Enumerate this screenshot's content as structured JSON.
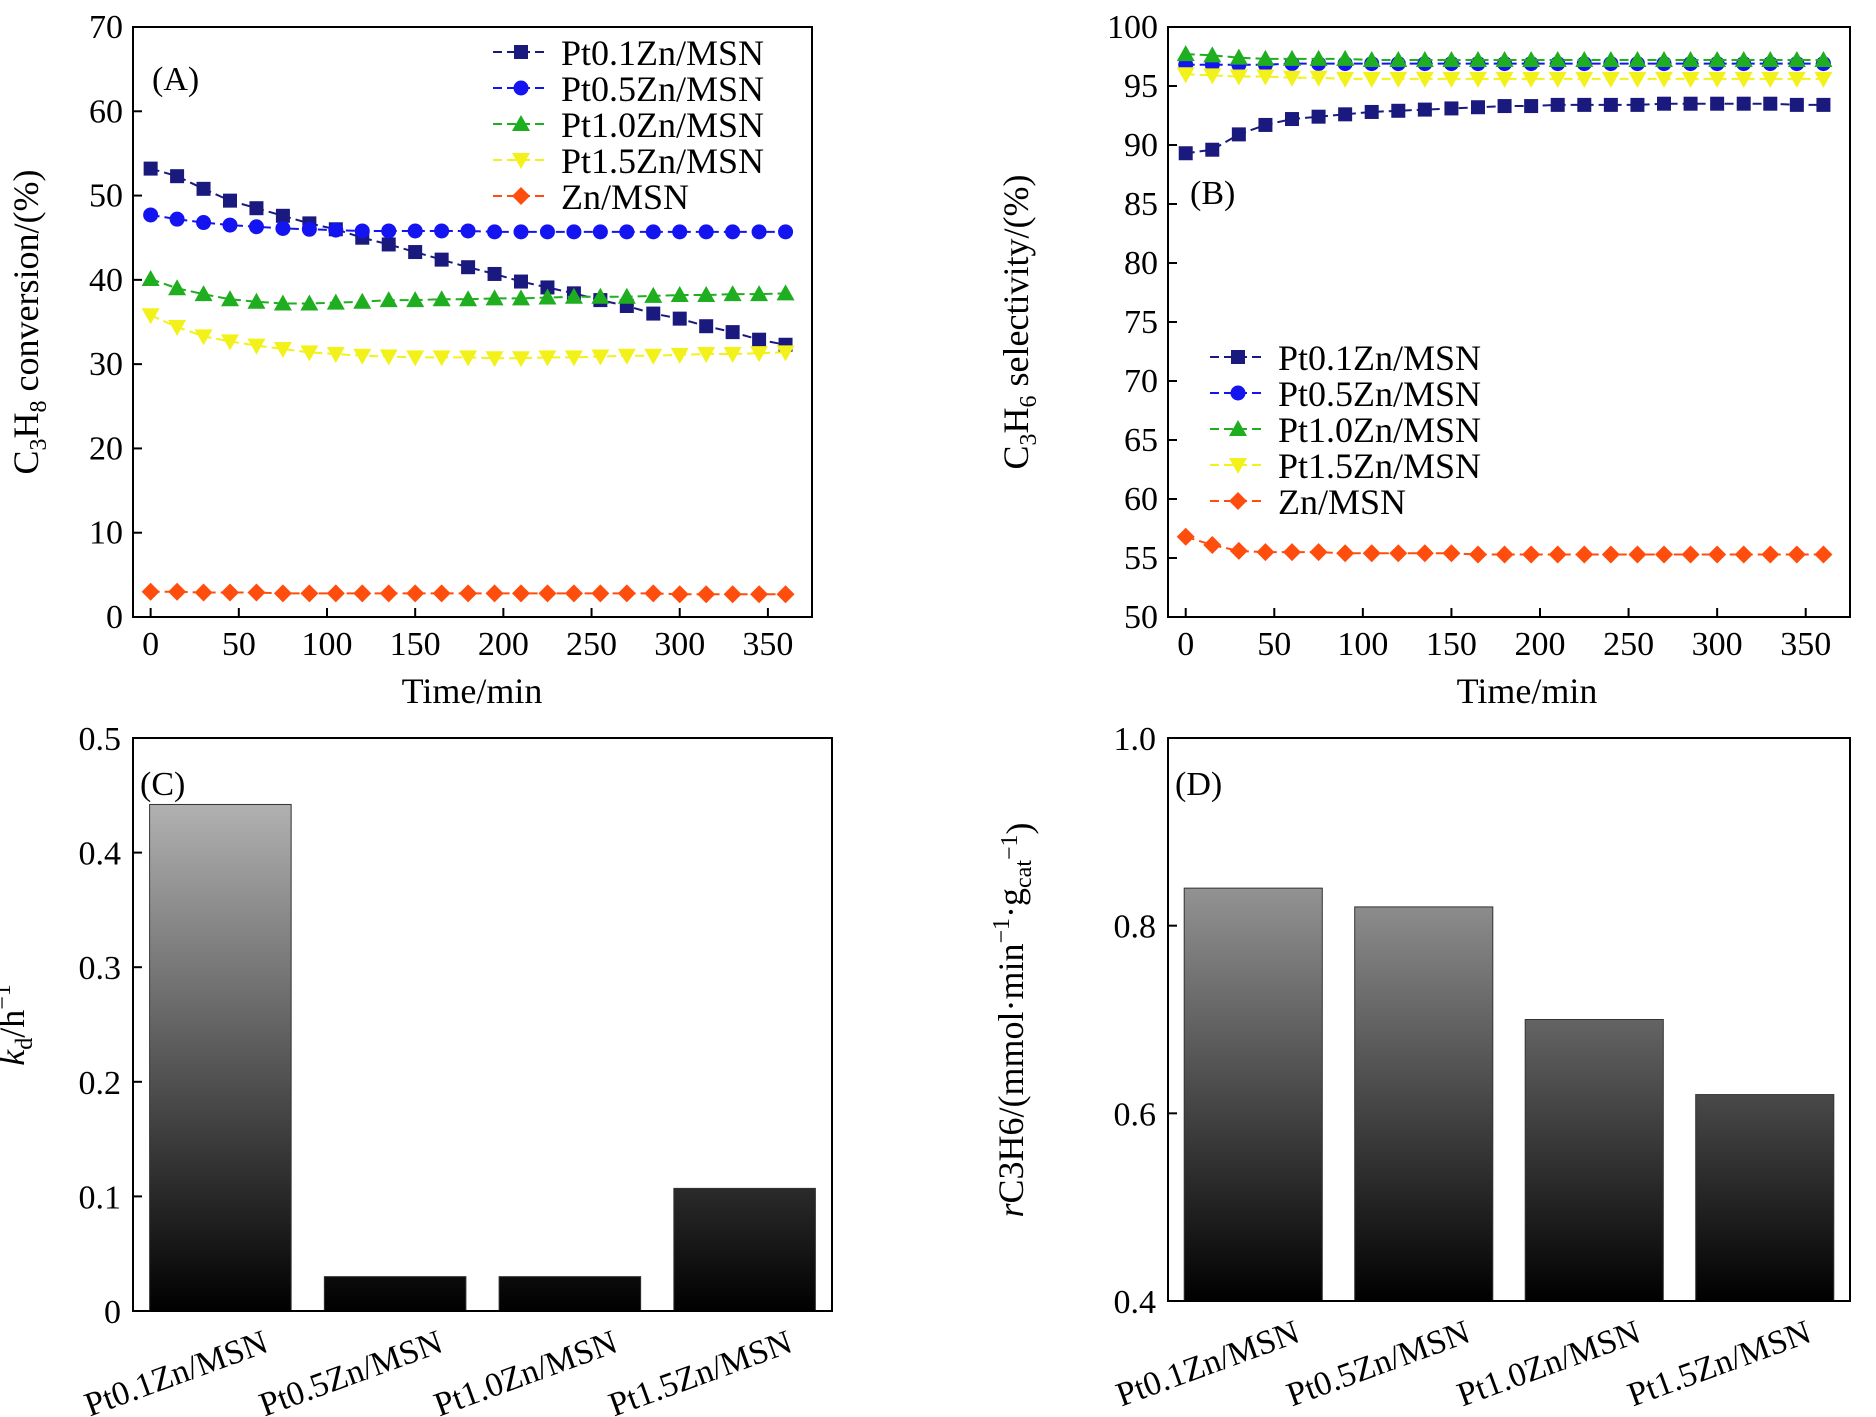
{
  "figure": {
    "panels": [
      "(A)",
      "(B)",
      "(C)",
      "(D)"
    ]
  },
  "series_colors": {
    "Pt0.1Zn/MSN": "#1a1a7e",
    "Pt0.5Zn/MSN": "#1414f0",
    "Pt1.0Zn/MSN": "#1fae1f",
    "Pt1.5Zn/MSN": "#f2f21a",
    "Zn/MSN": "#ff4d0d"
  },
  "chart_data": [
    {
      "id": "A",
      "type": "line",
      "panel_label": "(A)",
      "xlabel": "Time/min",
      "ylabel": "C3H8 conversion/(%)",
      "ylabel_parts": {
        "main": "C",
        "sub1": "3",
        "mid": "H",
        "sub2": "8",
        "tail": " conversion/(%)"
      },
      "xlim": [
        -10,
        375
      ],
      "ylim": [
        0,
        70
      ],
      "xticks": [
        0,
        50,
        100,
        150,
        200,
        250,
        300,
        350
      ],
      "yticks": [
        0,
        10,
        20,
        30,
        40,
        50,
        60,
        70
      ],
      "legend_position": "top-right",
      "x": [
        0,
        15,
        30,
        45,
        60,
        75,
        90,
        105,
        120,
        135,
        150,
        165,
        180,
        195,
        210,
        225,
        240,
        255,
        270,
        285,
        300,
        315,
        330,
        345,
        360
      ],
      "series": [
        {
          "name": "Pt0.1Zn/MSN",
          "marker": "square",
          "values": [
            53.2,
            52.3,
            50.8,
            49.4,
            48.5,
            47.6,
            46.7,
            46.0,
            45.0,
            44.2,
            43.3,
            42.4,
            41.5,
            40.7,
            39.8,
            39.1,
            38.4,
            37.6,
            36.9,
            36.0,
            35.4,
            34.5,
            33.8,
            32.9,
            32.3
          ]
        },
        {
          "name": "Pt0.5Zn/MSN",
          "marker": "circle",
          "values": [
            47.7,
            47.2,
            46.8,
            46.5,
            46.3,
            46.1,
            46.0,
            45.9,
            45.8,
            45.8,
            45.8,
            45.8,
            45.8,
            45.7,
            45.7,
            45.7,
            45.7,
            45.7,
            45.7,
            45.7,
            45.7,
            45.7,
            45.7,
            45.7,
            45.7
          ]
        },
        {
          "name": "Pt1.0Zn/MSN",
          "marker": "triangle-up",
          "values": [
            40.1,
            39.0,
            38.3,
            37.7,
            37.4,
            37.2,
            37.2,
            37.3,
            37.4,
            37.6,
            37.6,
            37.7,
            37.7,
            37.8,
            37.8,
            37.9,
            38.0,
            38.0,
            38.0,
            38.1,
            38.2,
            38.2,
            38.3,
            38.3,
            38.4
          ]
        },
        {
          "name": "Pt1.5Zn/MSN",
          "marker": "triangle-down",
          "values": [
            35.8,
            34.4,
            33.3,
            32.7,
            32.2,
            31.8,
            31.4,
            31.2,
            31.0,
            30.9,
            30.8,
            30.8,
            30.8,
            30.7,
            30.7,
            30.8,
            30.8,
            30.9,
            31.0,
            31.0,
            31.1,
            31.2,
            31.2,
            31.3,
            31.4
          ]
        },
        {
          "name": "Zn/MSN",
          "marker": "diamond",
          "values": [
            3.0,
            3.0,
            2.9,
            2.9,
            2.9,
            2.8,
            2.8,
            2.8,
            2.8,
            2.8,
            2.8,
            2.8,
            2.8,
            2.8,
            2.8,
            2.8,
            2.8,
            2.8,
            2.8,
            2.8,
            2.7,
            2.7,
            2.7,
            2.7,
            2.7
          ]
        }
      ]
    },
    {
      "id": "B",
      "type": "line",
      "panel_label": "(B)",
      "xlabel": "Time/min",
      "ylabel": "C3H6 selectivity/(%)",
      "ylabel_parts": {
        "main": "C",
        "sub1": "3",
        "mid": "H",
        "sub2": "6",
        "tail": " selectivity/(%)"
      },
      "xlim": [
        -10,
        375
      ],
      "ylim": [
        50,
        100
      ],
      "xticks": [
        0,
        50,
        100,
        150,
        200,
        250,
        300,
        350
      ],
      "yticks": [
        50,
        55,
        60,
        65,
        70,
        75,
        80,
        85,
        90,
        95,
        100
      ],
      "legend_position": "center-left",
      "x": [
        0,
        15,
        30,
        45,
        60,
        75,
        90,
        105,
        120,
        135,
        150,
        165,
        180,
        195,
        210,
        225,
        240,
        255,
        270,
        285,
        300,
        315,
        330,
        345,
        360
      ],
      "series": [
        {
          "name": "Pt0.1Zn/MSN",
          "marker": "square",
          "values": [
            89.3,
            89.6,
            90.9,
            91.7,
            92.2,
            92.4,
            92.6,
            92.8,
            92.9,
            93.0,
            93.1,
            93.2,
            93.3,
            93.3,
            93.4,
            93.4,
            93.4,
            93.4,
            93.5,
            93.5,
            93.5,
            93.5,
            93.5,
            93.4,
            93.4
          ]
        },
        {
          "name": "Pt0.5Zn/MSN",
          "marker": "circle",
          "values": [
            96.8,
            96.8,
            96.8,
            96.8,
            96.9,
            96.9,
            96.9,
            96.9,
            96.9,
            96.9,
            96.9,
            96.9,
            96.9,
            96.9,
            96.9,
            96.9,
            96.9,
            96.9,
            96.9,
            96.9,
            96.9,
            96.9,
            96.9,
            96.9,
            96.9
          ]
        },
        {
          "name": "Pt1.0Zn/MSN",
          "marker": "triangle-up",
          "values": [
            97.7,
            97.6,
            97.4,
            97.3,
            97.3,
            97.3,
            97.3,
            97.2,
            97.2,
            97.2,
            97.2,
            97.2,
            97.2,
            97.2,
            97.2,
            97.2,
            97.2,
            97.2,
            97.2,
            97.2,
            97.2,
            97.2,
            97.2,
            97.2,
            97.2
          ]
        },
        {
          "name": "Pt1.5Zn/MSN",
          "marker": "triangle-down",
          "values": [
            96.0,
            95.9,
            95.8,
            95.8,
            95.7,
            95.7,
            95.6,
            95.6,
            95.6,
            95.6,
            95.6,
            95.6,
            95.6,
            95.6,
            95.6,
            95.6,
            95.6,
            95.6,
            95.6,
            95.6,
            95.6,
            95.6,
            95.6,
            95.6,
            95.6
          ]
        },
        {
          "name": "Zn/MSN",
          "marker": "diamond",
          "values": [
            56.8,
            56.1,
            55.6,
            55.5,
            55.5,
            55.5,
            55.4,
            55.4,
            55.4,
            55.4,
            55.4,
            55.3,
            55.3,
            55.3,
            55.3,
            55.3,
            55.3,
            55.3,
            55.3,
            55.3,
            55.3,
            55.3,
            55.3,
            55.3,
            55.3
          ]
        }
      ]
    },
    {
      "id": "C",
      "type": "bar",
      "panel_label": "(C)",
      "xlabel": "",
      "ylabel": "kd/h−1",
      "ylabel_parts": {
        "main": "k",
        "sub": "d",
        "tail": "/h",
        "sup": "−1"
      },
      "ylim": [
        0,
        0.5
      ],
      "yticks": [
        0,
        0.1,
        0.2,
        0.3,
        0.4,
        0.5
      ],
      "ytick_labels": [
        "0",
        "0.1",
        "0.2",
        "0.3",
        "0.4",
        "0.5"
      ],
      "categories": [
        "Pt0.1Zn/MSN",
        "Pt0.5Zn/MSN",
        "Pt1.0Zn/MSN",
        "Pt1.5Zn/MSN"
      ],
      "values": [
        0.442,
        0.03,
        0.03,
        0.107
      ]
    },
    {
      "id": "D",
      "type": "bar",
      "panel_label": "(D)",
      "xlabel": "",
      "ylabel": "rC3H6/(mmol·min−1·gcat−1)",
      "ylabel_parts": {
        "main": "r",
        "sub_c": "C",
        "sub_3": "3",
        "sub_h": "H",
        "sub_6": "6",
        "mid": "/(mmol·min",
        "sup1": "−1",
        "dot": "·g",
        "sub_cat": "cat",
        "sup2": "−1",
        "tail": ")"
      },
      "ylim": [
        0.4,
        1.0
      ],
      "yticks": [
        0.4,
        0.6,
        0.8,
        1.0
      ],
      "ytick_labels": [
        "0.4",
        "0.6",
        "0.8",
        "1.0"
      ],
      "categories": [
        "Pt0.1Zn/MSN",
        "Pt0.5Zn/MSN",
        "Pt1.0Zn/MSN",
        "Pt1.5Zn/MSN"
      ],
      "values": [
        0.84,
        0.82,
        0.7,
        0.62
      ]
    }
  ]
}
